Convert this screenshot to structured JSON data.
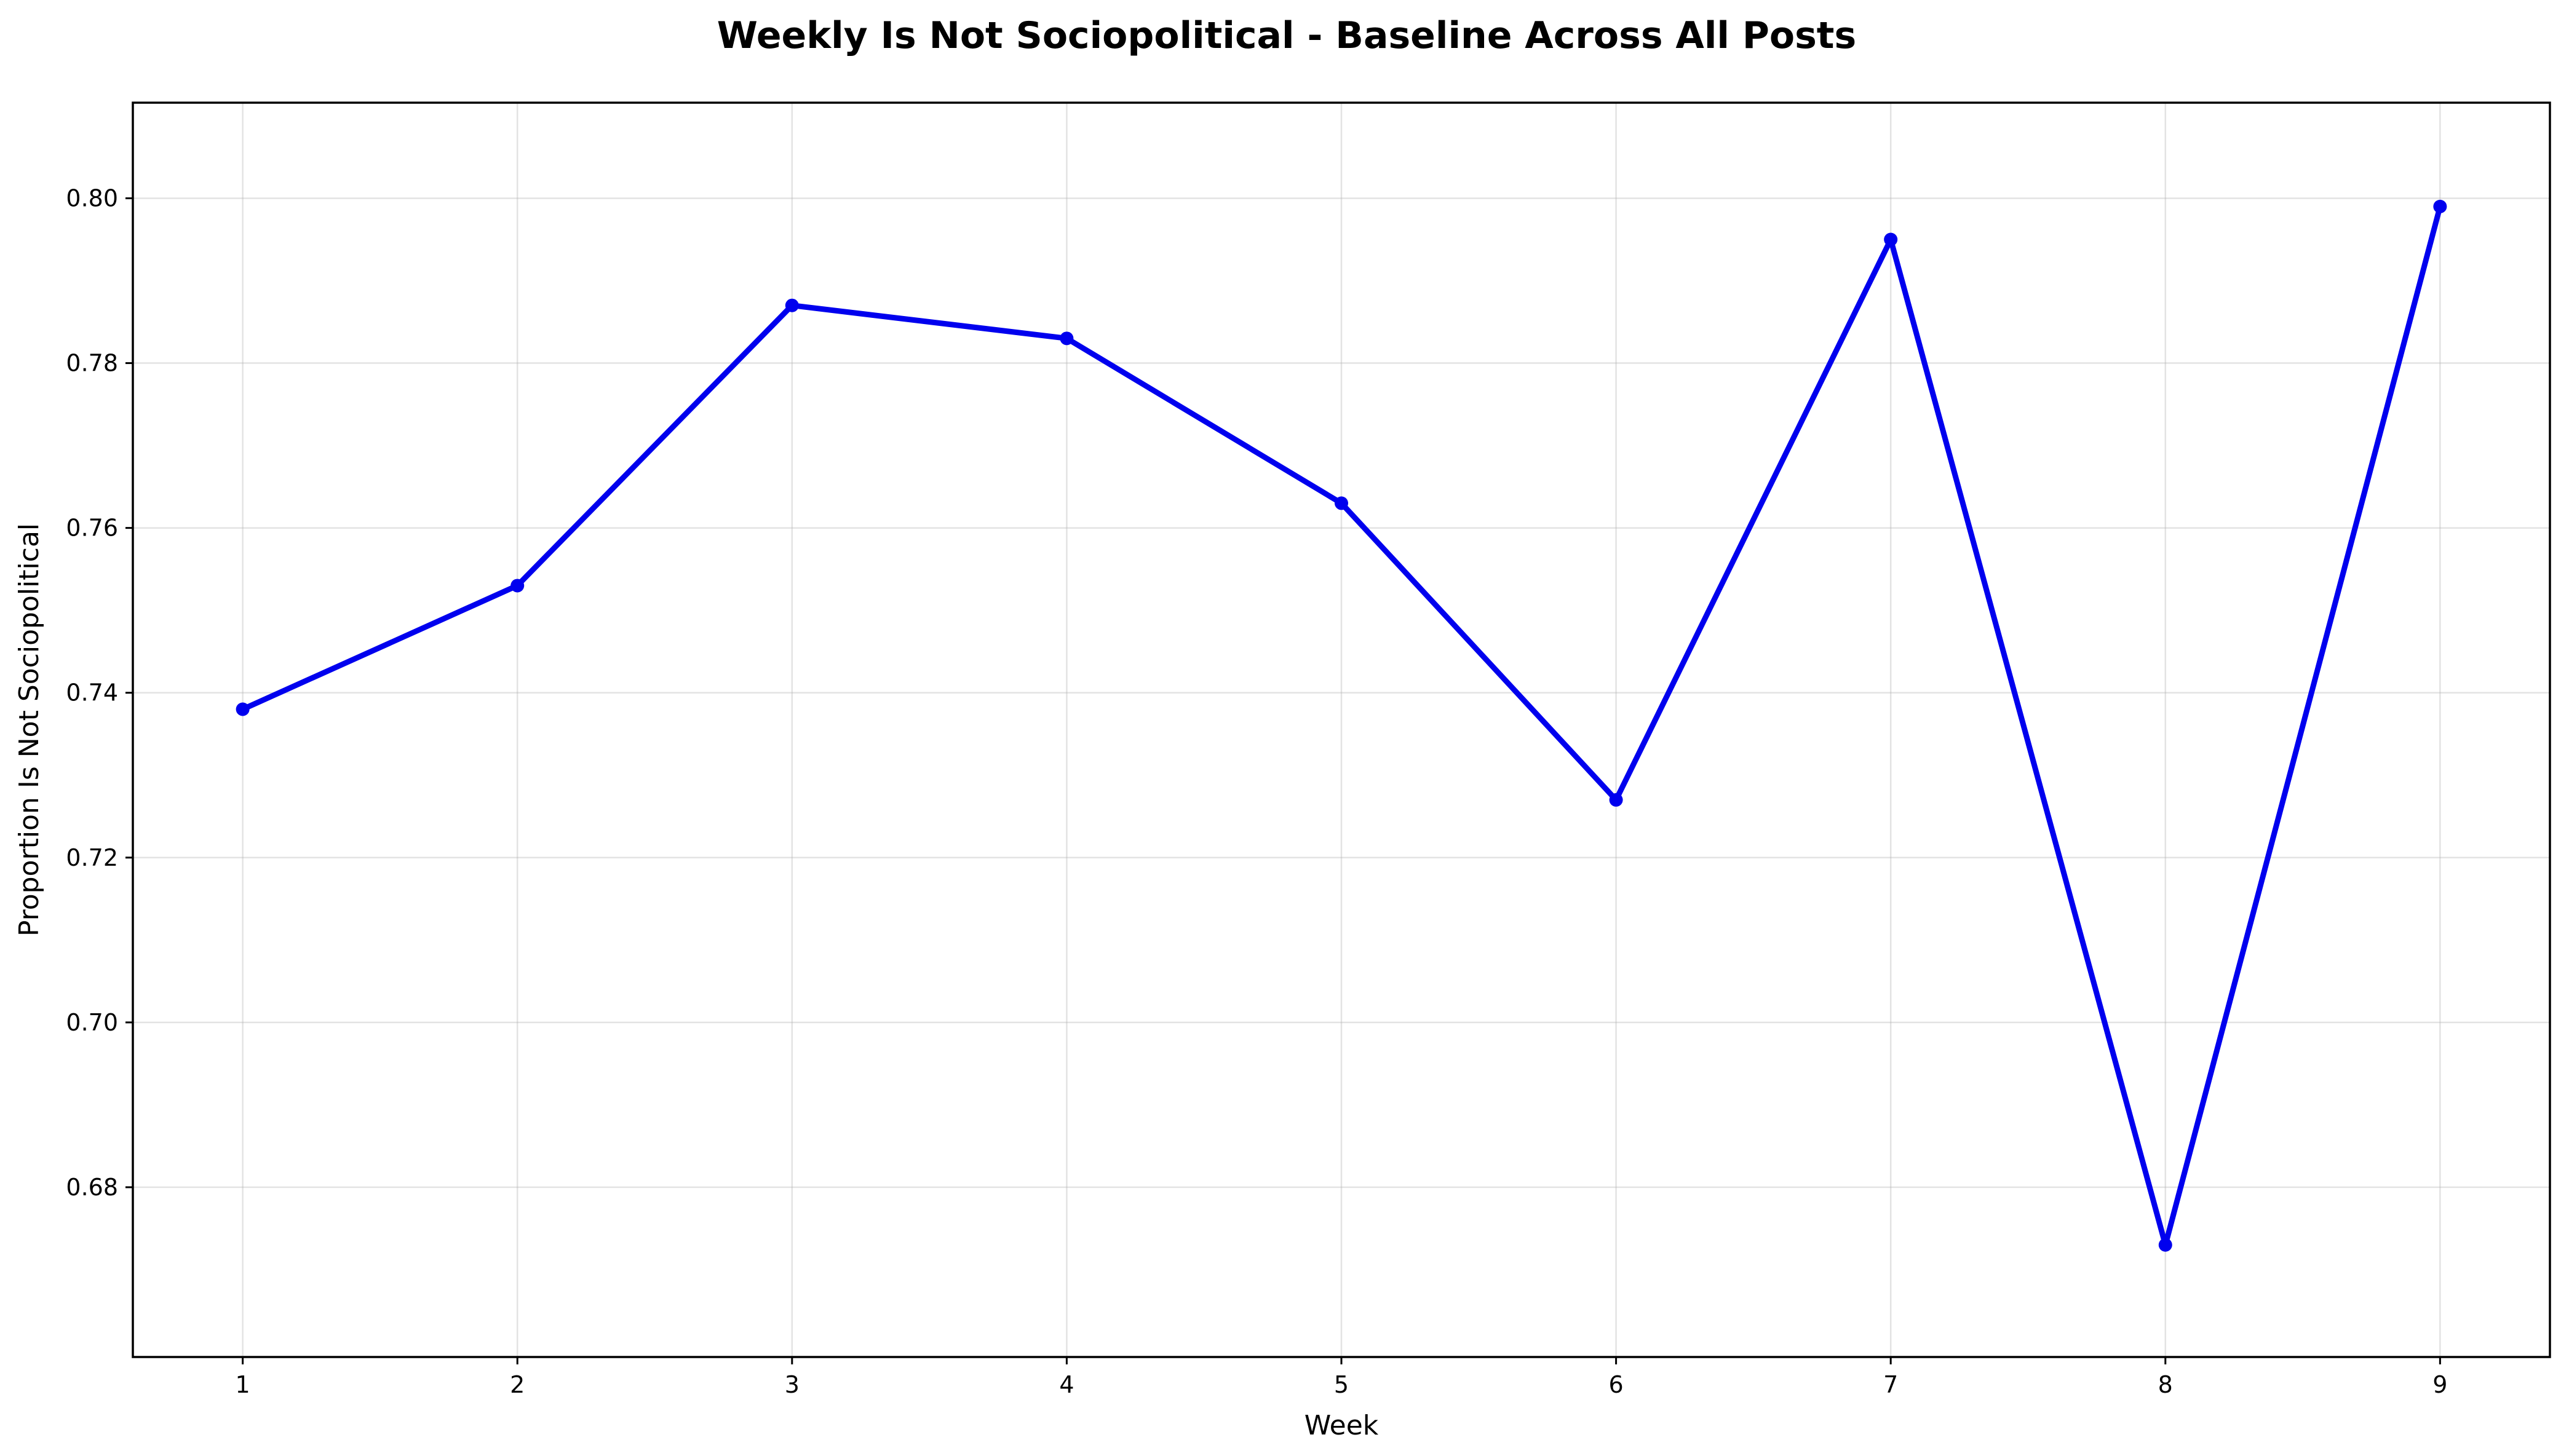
{
  "chart_data": {
    "type": "line",
    "title": "Weekly Is Not Sociopolitical - Baseline Across All Posts",
    "xlabel": "Week",
    "ylabel": "Proportion Is Not Sociopolitical",
    "x": [
      1,
      2,
      3,
      4,
      5,
      6,
      7,
      8,
      9
    ],
    "series": [
      {
        "values": [
          0.738,
          0.753,
          0.787,
          0.783,
          0.763,
          0.727,
          0.795,
          0.673,
          0.799
        ]
      }
    ],
    "xlim": [
      0.6,
      9.4
    ],
    "ylim": [
      0.6594,
      0.8116
    ],
    "xticks": [
      1,
      2,
      3,
      4,
      5,
      6,
      7,
      8,
      9
    ],
    "yticks": [
      0.68,
      0.7,
      0.72,
      0.74,
      0.76,
      0.78,
      0.8
    ],
    "ytick_labels": [
      "0.68",
      "0.70",
      "0.72",
      "0.74",
      "0.76",
      "0.78",
      "0.80"
    ],
    "grid": true,
    "legend": "none",
    "marker": "circle",
    "line_color": "#0000ee"
  }
}
